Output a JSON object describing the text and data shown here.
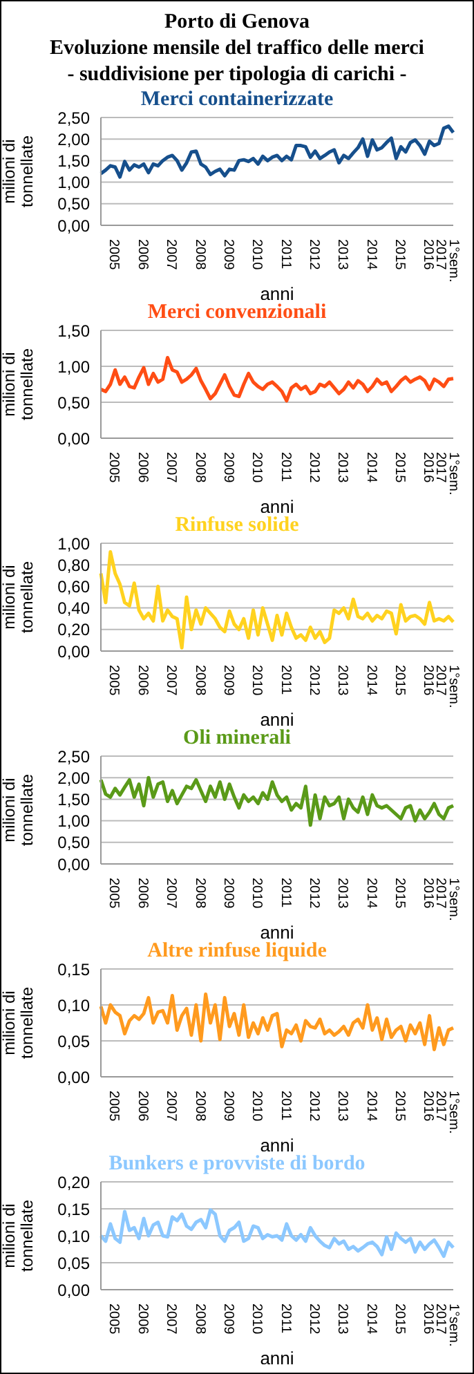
{
  "chart_data": [
    {
      "type": "other",
      "title": "Porto di Genova",
      "annotations": [
        "Evoluzione mensile del traffico delle merci",
        "- suddivisione per tipologia di carichi -"
      ]
    },
    {
      "type": "line",
      "title": "Merci containerizzate",
      "xlabel": "anni",
      "ylabel": "milioni di tonnellate",
      "grid": "y",
      "categories": [
        null,
        null,
        null,
        "2005",
        null,
        null,
        null,
        null,
        null,
        "2006",
        null,
        null,
        null,
        null,
        null,
        "2007",
        null,
        null,
        null,
        null,
        null,
        "2008",
        null,
        null,
        null,
        null,
        null,
        "2009",
        null,
        null,
        null,
        null,
        null,
        "2010",
        null,
        null,
        null,
        null,
        null,
        "2011",
        null,
        null,
        null,
        null,
        null,
        "2012",
        null,
        null,
        null,
        null,
        null,
        "2013",
        null,
        null,
        null,
        null,
        null,
        "2014",
        null,
        null,
        null,
        null,
        null,
        "2015",
        null,
        null,
        null,
        null,
        null,
        "2016",
        null,
        null,
        null,
        "1°sem. 2017",
        null
      ],
      "series": [
        {
          "color": "#164f8c",
          "values": [
            1.2,
            1.28,
            1.38,
            1.35,
            1.12,
            1.48,
            1.28,
            1.4,
            1.35,
            1.42,
            1.22,
            1.42,
            1.38,
            1.5,
            1.58,
            1.62,
            1.5,
            1.28,
            1.45,
            1.7,
            1.72,
            1.42,
            1.35,
            1.18,
            1.25,
            1.3,
            1.15,
            1.3,
            1.28,
            1.5,
            1.52,
            1.48,
            1.55,
            1.42,
            1.6,
            1.5,
            1.58,
            1.62,
            1.5,
            1.6,
            1.52,
            1.85,
            1.85,
            1.82,
            1.58,
            1.72,
            1.55,
            1.62,
            1.7,
            1.75,
            1.45,
            1.62,
            1.55,
            1.68,
            1.8,
            2.0,
            1.6,
            1.98,
            1.75,
            1.8,
            1.92,
            2.02,
            1.55,
            1.82,
            1.7,
            1.92,
            1.98,
            1.85,
            1.65,
            1.95,
            1.85,
            1.9,
            2.25,
            2.3,
            2.15
          ]
        }
      ],
      "ylim": [
        0,
        2.5
      ],
      "yticks": [
        {
          "value": 0,
          "label": "0,00"
        },
        {
          "value": 0.5,
          "label": "0,50"
        },
        {
          "value": 1,
          "label": "1,00"
        },
        {
          "value": 1.5,
          "label": "1,50"
        },
        {
          "value": 2,
          "label": "2,00"
        },
        {
          "value": 2.5,
          "label": "2,50"
        }
      ]
    },
    {
      "type": "line",
      "title": "Merci convenzionali",
      "xlabel": "anni",
      "ylabel": "milioni di tonnellate",
      "grid": "y",
      "categories": [
        null,
        null,
        null,
        "2005",
        null,
        null,
        null,
        null,
        null,
        "2006",
        null,
        null,
        null,
        null,
        null,
        "2007",
        null,
        null,
        null,
        null,
        null,
        "2008",
        null,
        null,
        null,
        null,
        null,
        "2009",
        null,
        null,
        null,
        null,
        null,
        "2010",
        null,
        null,
        null,
        null,
        null,
        "2011",
        null,
        null,
        null,
        null,
        null,
        "2012",
        null,
        null,
        null,
        null,
        null,
        "2013",
        null,
        null,
        null,
        null,
        null,
        "2014",
        null,
        null,
        null,
        null,
        null,
        "2015",
        null,
        null,
        null,
        null,
        null,
        "2016",
        null,
        null,
        null,
        "1°sem. 2017",
        null
      ],
      "series": [
        {
          "color": "#ff4d14",
          "values": [
            0.68,
            0.65,
            0.75,
            0.95,
            0.75,
            0.85,
            0.72,
            0.7,
            0.85,
            0.98,
            0.75,
            0.9,
            0.78,
            0.82,
            1.12,
            0.95,
            0.92,
            0.78,
            0.82,
            0.88,
            0.97,
            0.8,
            0.68,
            0.55,
            0.62,
            0.75,
            0.88,
            0.72,
            0.6,
            0.58,
            0.75,
            0.9,
            0.78,
            0.72,
            0.68,
            0.75,
            0.78,
            0.72,
            0.65,
            0.52,
            0.7,
            0.75,
            0.68,
            0.72,
            0.62,
            0.65,
            0.75,
            0.72,
            0.78,
            0.7,
            0.62,
            0.68,
            0.78,
            0.7,
            0.8,
            0.75,
            0.65,
            0.72,
            0.82,
            0.75,
            0.78,
            0.65,
            0.72,
            0.8,
            0.85,
            0.78,
            0.82,
            0.85,
            0.8,
            0.68,
            0.82,
            0.78,
            0.72,
            0.82,
            0.83
          ]
        }
      ],
      "ylim": [
        0,
        1.5
      ],
      "yticks": [
        {
          "value": 0,
          "label": "0,00"
        },
        {
          "value": 0.5,
          "label": "0,50"
        },
        {
          "value": 1,
          "label": "1,00"
        },
        {
          "value": 1.5,
          "label": "1,50"
        }
      ]
    },
    {
      "type": "line",
      "title": "Rinfuse solide",
      "xlabel": "anni",
      "ylabel": "milioni di tonnellate",
      "grid": "y",
      "categories": [
        null,
        null,
        null,
        "2005",
        null,
        null,
        null,
        null,
        null,
        "2006",
        null,
        null,
        null,
        null,
        null,
        "2007",
        null,
        null,
        null,
        null,
        null,
        "2008",
        null,
        null,
        null,
        null,
        null,
        "2009",
        null,
        null,
        null,
        null,
        null,
        "2010",
        null,
        null,
        null,
        null,
        null,
        "2011",
        null,
        null,
        null,
        null,
        null,
        "2012",
        null,
        null,
        null,
        null,
        null,
        "2013",
        null,
        null,
        null,
        null,
        null,
        "2014",
        null,
        null,
        null,
        null,
        null,
        "2015",
        null,
        null,
        null,
        null,
        null,
        "2016",
        null,
        null,
        null,
        "1°sem. 2017",
        null
      ],
      "series": [
        {
          "color": "#ffd21f",
          "values": [
            0.72,
            0.45,
            0.92,
            0.72,
            0.62,
            0.45,
            0.42,
            0.63,
            0.38,
            0.3,
            0.35,
            0.28,
            0.6,
            0.28,
            0.38,
            0.32,
            0.3,
            0.03,
            0.5,
            0.2,
            0.38,
            0.25,
            0.4,
            0.35,
            0.3,
            0.22,
            0.18,
            0.37,
            0.25,
            0.2,
            0.3,
            0.12,
            0.38,
            0.15,
            0.4,
            0.25,
            0.1,
            0.33,
            0.15,
            0.35,
            0.22,
            0.12,
            0.15,
            0.1,
            0.22,
            0.12,
            0.18,
            0.08,
            0.12,
            0.38,
            0.35,
            0.4,
            0.3,
            0.48,
            0.32,
            0.3,
            0.35,
            0.28,
            0.33,
            0.3,
            0.37,
            0.35,
            0.16,
            0.43,
            0.28,
            0.32,
            0.33,
            0.3,
            0.25,
            0.45,
            0.28,
            0.3,
            0.28,
            0.32,
            0.27
          ]
        }
      ],
      "ylim": [
        0,
        1
      ],
      "yticks": [
        {
          "value": 0,
          "label": "0,00"
        },
        {
          "value": 0.2,
          "label": "0,20"
        },
        {
          "value": 0.4,
          "label": "0,40"
        },
        {
          "value": 0.6,
          "label": "0,60"
        },
        {
          "value": 0.8,
          "label": "0,80"
        },
        {
          "value": 1,
          "label": "1,00"
        }
      ]
    },
    {
      "type": "line",
      "title": "Oli minerali",
      "xlabel": "anni",
      "ylabel": "milioni di tonnellate",
      "grid": "y",
      "categories": [
        null,
        null,
        null,
        "2005",
        null,
        null,
        null,
        null,
        null,
        "2006",
        null,
        null,
        null,
        null,
        null,
        "2007",
        null,
        null,
        null,
        null,
        null,
        "2008",
        null,
        null,
        null,
        null,
        null,
        "2009",
        null,
        null,
        null,
        null,
        null,
        "2010",
        null,
        null,
        null,
        null,
        null,
        "2011",
        null,
        null,
        null,
        null,
        null,
        "2012",
        null,
        null,
        null,
        null,
        null,
        "2013",
        null,
        null,
        null,
        null,
        null,
        "2014",
        null,
        null,
        null,
        null,
        null,
        "2015",
        null,
        null,
        null,
        null,
        null,
        "2016",
        null,
        null,
        null,
        "1°sem. 2017",
        null
      ],
      "series": [
        {
          "color": "#5a9a18",
          "values": [
            1.95,
            1.62,
            1.55,
            1.75,
            1.6,
            1.78,
            1.95,
            1.55,
            1.85,
            1.35,
            2.0,
            1.55,
            1.85,
            1.9,
            1.45,
            1.7,
            1.4,
            1.6,
            1.8,
            1.75,
            1.95,
            1.7,
            1.45,
            1.8,
            1.55,
            1.9,
            1.5,
            1.85,
            1.55,
            1.3,
            1.6,
            1.45,
            1.55,
            1.4,
            1.65,
            1.5,
            1.9,
            1.6,
            1.45,
            1.55,
            1.25,
            1.4,
            1.3,
            1.8,
            0.9,
            1.6,
            1.05,
            1.55,
            1.35,
            1.4,
            1.55,
            1.05,
            1.5,
            1.3,
            1.2,
            1.55,
            1.15,
            1.6,
            1.35,
            1.3,
            1.35,
            1.25,
            1.15,
            1.05,
            1.3,
            1.35,
            1.0,
            1.25,
            1.05,
            1.2,
            1.4,
            1.15,
            1.05,
            1.3,
            1.35
          ]
        }
      ],
      "ylim": [
        0,
        2.5
      ],
      "yticks": [
        {
          "value": 0,
          "label": "0,00"
        },
        {
          "value": 0.5,
          "label": "0,50"
        },
        {
          "value": 1,
          "label": "1,00"
        },
        {
          "value": 1.5,
          "label": "1,50"
        },
        {
          "value": 2,
          "label": "2,00"
        },
        {
          "value": 2.5,
          "label": "2,50"
        }
      ]
    },
    {
      "type": "line",
      "title": "Altre rinfuse liquide",
      "xlabel": "anni",
      "ylabel": "milioni di tonnellate",
      "grid": "y",
      "categories": [
        null,
        null,
        null,
        "2005",
        null,
        null,
        null,
        null,
        null,
        "2006",
        null,
        null,
        null,
        null,
        null,
        "2007",
        null,
        null,
        null,
        null,
        null,
        "2008",
        null,
        null,
        null,
        null,
        null,
        "2009",
        null,
        null,
        null,
        null,
        null,
        "2010",
        null,
        null,
        null,
        null,
        null,
        "2011",
        null,
        null,
        null,
        null,
        null,
        "2012",
        null,
        null,
        null,
        null,
        null,
        "2013",
        null,
        null,
        null,
        null,
        null,
        "2014",
        null,
        null,
        null,
        null,
        null,
        "2015",
        null,
        null,
        null,
        null,
        null,
        "2016",
        null,
        null,
        null,
        "1°sem. 2017",
        null
      ],
      "series": [
        {
          "color": "#ff9a1e",
          "values": [
            0.098,
            0.075,
            0.1,
            0.09,
            0.085,
            0.06,
            0.078,
            0.085,
            0.08,
            0.088,
            0.11,
            0.075,
            0.09,
            0.092,
            0.075,
            0.113,
            0.065,
            0.085,
            0.095,
            0.058,
            0.1,
            0.05,
            0.115,
            0.075,
            0.1,
            0.052,
            0.11,
            0.07,
            0.088,
            0.058,
            0.1,
            0.055,
            0.075,
            0.06,
            0.082,
            0.065,
            0.085,
            0.088,
            0.042,
            0.065,
            0.06,
            0.072,
            0.05,
            0.078,
            0.07,
            0.068,
            0.08,
            0.06,
            0.065,
            0.058,
            0.063,
            0.07,
            0.058,
            0.075,
            0.08,
            0.068,
            0.1,
            0.065,
            0.082,
            0.052,
            0.08,
            0.055,
            0.065,
            0.07,
            0.05,
            0.072,
            0.06,
            0.075,
            0.045,
            0.085,
            0.038,
            0.068,
            0.045,
            0.065,
            0.068
          ]
        }
      ],
      "ylim": [
        0,
        0.15
      ],
      "yticks": [
        {
          "value": 0,
          "label": "0,00"
        },
        {
          "value": 0.05,
          "label": "0,05"
        },
        {
          "value": 0.1,
          "label": "0,10"
        },
        {
          "value": 0.15,
          "label": "0,15"
        }
      ]
    },
    {
      "type": "line",
      "title": "Bunkers e provviste di bordo",
      "xlabel": "anni",
      "ylabel": "milioni di tonnellate",
      "grid": "y",
      "categories": [
        null,
        null,
        null,
        "2005",
        null,
        null,
        null,
        null,
        null,
        "2006",
        null,
        null,
        null,
        null,
        null,
        "2007",
        null,
        null,
        null,
        null,
        null,
        "2008",
        null,
        null,
        null,
        null,
        null,
        "2009",
        null,
        null,
        null,
        null,
        null,
        "2010",
        null,
        null,
        null,
        null,
        null,
        "2011",
        null,
        null,
        null,
        null,
        null,
        "2012",
        null,
        null,
        null,
        null,
        null,
        "2013",
        null,
        null,
        null,
        null,
        null,
        "2014",
        null,
        null,
        null,
        null,
        null,
        "2015",
        null,
        null,
        null,
        null,
        null,
        "2016",
        null,
        null,
        null,
        "1°sem. 2017",
        null
      ],
      "series": [
        {
          "color": "#8cc8ff",
          "values": [
            0.1,
            0.09,
            0.122,
            0.095,
            0.088,
            0.145,
            0.11,
            0.115,
            0.095,
            0.132,
            0.1,
            0.12,
            0.125,
            0.1,
            0.098,
            0.135,
            0.128,
            0.14,
            0.118,
            0.112,
            0.125,
            0.13,
            0.115,
            0.148,
            0.14,
            0.1,
            0.09,
            0.11,
            0.115,
            0.125,
            0.09,
            0.095,
            0.118,
            0.115,
            0.095,
            0.102,
            0.098,
            0.1,
            0.092,
            0.122,
            0.1,
            0.092,
            0.102,
            0.09,
            0.115,
            0.1,
            0.09,
            0.082,
            0.078,
            0.095,
            0.085,
            0.09,
            0.075,
            0.08,
            0.072,
            0.078,
            0.085,
            0.088,
            0.08,
            0.065,
            0.098,
            0.075,
            0.105,
            0.095,
            0.088,
            0.095,
            0.07,
            0.088,
            0.075,
            0.085,
            0.092,
            0.078,
            0.062,
            0.088,
            0.078
          ]
        }
      ],
      "ylim": [
        0,
        0.2
      ],
      "yticks": [
        {
          "value": 0,
          "label": "0,00"
        },
        {
          "value": 0.05,
          "label": "0,05"
        },
        {
          "value": 0.1,
          "label": "0,10"
        },
        {
          "value": 0.15,
          "label": "0,15"
        },
        {
          "value": 0.2,
          "label": "0,20"
        }
      ]
    }
  ]
}
